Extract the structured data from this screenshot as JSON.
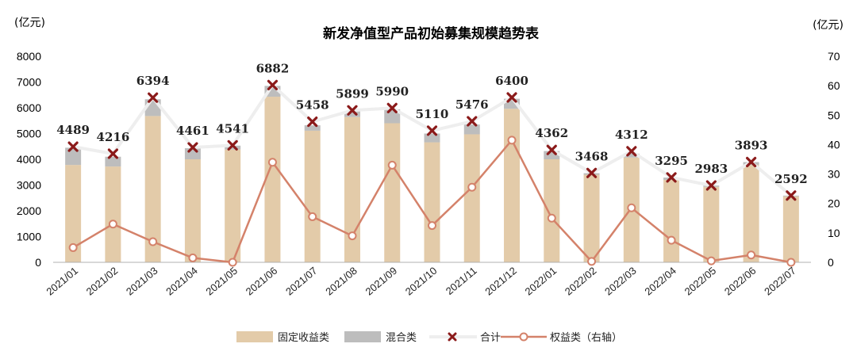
{
  "chart_data": {
    "type": "bar",
    "title": "新发净值型产品初始募集规模趋势表",
    "y_left_unit": "(亿元)",
    "y_right_unit": "(亿元)",
    "ylim_left": [
      0,
      8000
    ],
    "ylim_right": [
      0,
      70
    ],
    "y_left_ticks": [
      "0",
      "1000",
      "2000",
      "3000",
      "4000",
      "5000",
      "6000",
      "7000",
      "8000"
    ],
    "y_right_ticks": [
      "0",
      "10",
      "20",
      "30",
      "40",
      "50",
      "60",
      "70"
    ],
    "categories": [
      "2021/01",
      "2021/02",
      "2021/03",
      "2021/04",
      "2021/05",
      "2021/06",
      "2021/07",
      "2021/08",
      "2021/09",
      "2021/10",
      "2021/11",
      "2021/12",
      "2022/01",
      "2022/02",
      "2022/03",
      "2022/04",
      "2022/05",
      "2022/06",
      "2022/07"
    ],
    "series": [
      {
        "name": "固定收益类",
        "type": "bar-stacked",
        "axis": "left",
        "values": [
          3780,
          3720,
          5680,
          4000,
          4380,
          6430,
          5110,
          5640,
          5400,
          4660,
          4970,
          5960,
          4000,
          3400,
          4070,
          3200,
          2930,
          3780,
          2560
        ]
      },
      {
        "name": "混合类",
        "type": "bar-stacked",
        "axis": "left",
        "values": [
          670,
          380,
          650,
          430,
          150,
          420,
          210,
          230,
          540,
          340,
          380,
          390,
          320,
          60,
          150,
          90,
          50,
          110,
          30
        ]
      },
      {
        "name": "合计",
        "type": "line-marker",
        "axis": "left",
        "values": [
          4489,
          4216,
          6394,
          4461,
          4541,
          6882,
          5458,
          5899,
          5990,
          5110,
          5476,
          6400,
          4362,
          3468,
          4312,
          3295,
          2983,
          3893,
          2592
        ],
        "labels": [
          "4489",
          "4216",
          "6394",
          "4461",
          "4541",
          "6882",
          "5458",
          "5899",
          "5990",
          "5110",
          "5476",
          "6400",
          "4362",
          "3468",
          "4312",
          "3295",
          "2983",
          "3893",
          "2592"
        ]
      },
      {
        "name": "权益类（右轴）",
        "type": "line",
        "axis": "right",
        "values": [
          5,
          13,
          7,
          1.5,
          0,
          34,
          15.5,
          9,
          33,
          12.5,
          25.5,
          41.5,
          15,
          0.3,
          18.5,
          7.5,
          0.5,
          2.5,
          0
        ]
      }
    ],
    "colors": {
      "fixed_income": "#e3cba9",
      "mixed": "#bdbdbd",
      "total_marker": "#8b1a1a",
      "total_line": "#eeeeee",
      "equity_line": "#d4826a",
      "axis": "#b0b0b0"
    },
    "legend_position": "bottom",
    "grid": false
  }
}
